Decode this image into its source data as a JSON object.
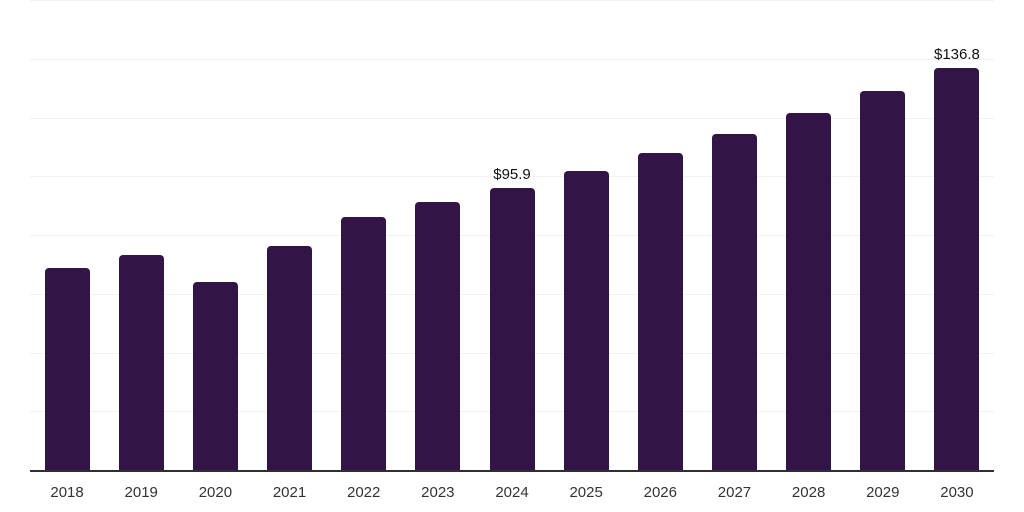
{
  "chart_data": {
    "type": "bar",
    "title": "",
    "xlabel": "",
    "ylabel": "",
    "categories": [
      "2018",
      "2019",
      "2020",
      "2021",
      "2022",
      "2023",
      "2024",
      "2025",
      "2026",
      "2027",
      "2028",
      "2029",
      "2030"
    ],
    "values": [
      68.9,
      73.2,
      64.1,
      76.3,
      86.0,
      91.1,
      95.9,
      101.7,
      108.0,
      114.5,
      121.5,
      129.0,
      136.8
    ],
    "data_labels": {
      "2024": "$95.9",
      "2030": "$136.8"
    },
    "ylim": [
      0,
      160
    ],
    "gridline_step": 20,
    "grid": "horizontal-faint",
    "legend_position": "none",
    "colors": {
      "bar": "#331447",
      "axis_line": "#2f2f2f",
      "gridline": "#f2f2f2",
      "tick_label": "#333333",
      "data_label": "#111111",
      "background": "#ffffff"
    }
  }
}
